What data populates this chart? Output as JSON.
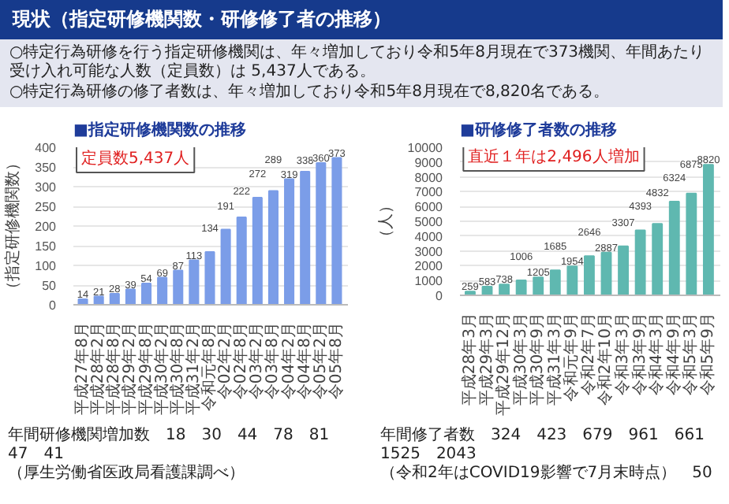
{
  "chart_data": [
    {
      "type": "other",
      "title": "現状（指定研修機関数・研修修了者の推移）",
      "annotations": [
        "○特定行為研修を行う指定研修機関は、年々増加しており令和5年8月現在で373機関、年間あたり受け入れ可能な人数（定員数）は 5,437人である。",
        "○特定行為研修の修了者数は、年々増加しており令和5年8月現在で8,820名である。"
      ]
    },
    {
      "type": "bar",
      "title": "■指定研修機関数の推移",
      "ylabel": "（指定研修機関数）",
      "color": "#7b9de8",
      "categories": [
        "平成27年8月",
        "平成28年2月",
        "平成28年8月",
        "平成29年2月",
        "平成29年8月",
        "平成30年2月",
        "平成30年8月",
        "平成31年2月",
        "令和元年8月",
        "令02年2月",
        "令02年8月",
        "令03年2月",
        "令03年8月",
        "令04年2月",
        "令04年8月",
        "令05年2月",
        "令05年8月"
      ],
      "values": [
        14,
        21,
        28,
        39,
        54,
        69,
        87,
        113,
        134,
        191,
        222,
        272,
        289,
        319,
        338,
        360,
        373
      ],
      "ylim": [
        0,
        400
      ],
      "yticks": [
        0,
        50,
        100,
        150,
        200,
        250,
        300,
        350,
        400
      ],
      "grid": "y",
      "data_labels": true,
      "annotations": [
        "定員数5,437人",
        "年間研修機関増加数　18　30　44　78　81　47　41",
        "（厚生労働省医政局看護課調べ）"
      ]
    },
    {
      "type": "bar",
      "title": "■研修修了者数の推移",
      "ylabel": "（人）",
      "color": "#5fb8b0",
      "categories": [
        "平成28年3月",
        "平成29年3月",
        "平成29年12月",
        "平成30年3月",
        "平成30年9月",
        "平成31年3月",
        "令和元年9月",
        "令和2年7月",
        "令和2年10月",
        "令和3年3月",
        "令和3年9月",
        "令和4年3月",
        "令和4年9月",
        "令和5年3月",
        "令和5年9月"
      ],
      "values": [
        259,
        583,
        738,
        1006,
        1205,
        1685,
        1954,
        2646,
        2887,
        3307,
        4393,
        4832,
        6324,
        6875,
        8820
      ],
      "ylim": [
        0,
        10000
      ],
      "yticks": [
        0,
        1000,
        2000,
        3000,
        4000,
        5000,
        6000,
        7000,
        8000,
        9000,
        10000
      ],
      "grid": "y",
      "data_labels": true,
      "annotations": [
        "直近１年は2,496人増加",
        "年間修了者数　324　423　679　961　661　1525　2043",
        "（令和2年はCOVID19影響で7月末時点）　50"
      ]
    }
  ]
}
